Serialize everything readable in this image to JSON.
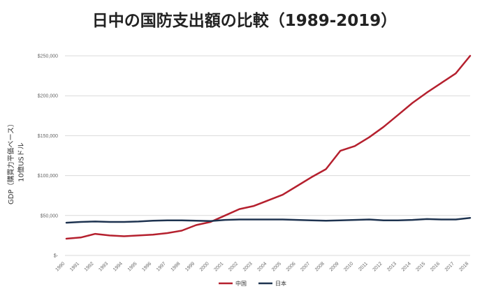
{
  "chart_data": {
    "type": "line",
    "title": "日中の国防支出額の比較（1989-2019）",
    "ylabel_line1": "GDP（購買力平価ベース）",
    "ylabel_line2": "10億USドル",
    "ylim": [
      0,
      250000
    ],
    "y_ticks": [
      "$-",
      "$50,000",
      "$100,000",
      "$150,000",
      "$200,000",
      "$250,000"
    ],
    "y_tick_values": [
      0,
      50000,
      100000,
      150000,
      200000,
      250000
    ],
    "x": [
      "1990",
      "1991",
      "1992",
      "1993",
      "1994",
      "1995",
      "1996",
      "1997",
      "1998",
      "1999",
      "2000",
      "2001",
      "2002",
      "2003",
      "2004",
      "2005",
      "2006",
      "2007",
      "2008",
      "2009",
      "2010",
      "2011",
      "2012",
      "2013",
      "2014",
      "2015",
      "2016",
      "2017",
      "2018"
    ],
    "grid": "horizontal",
    "legend_position": "bottom",
    "series": [
      {
        "name": "中国",
        "color": "#b5202e",
        "values": [
          21000,
          22500,
          27000,
          25000,
          24000,
          25000,
          26000,
          28000,
          31000,
          38000,
          42000,
          50000,
          58000,
          62000,
          69000,
          76000,
          87000,
          98000,
          108000,
          131000,
          137000,
          148000,
          161000,
          176000,
          191000,
          204000,
          216000,
          228000,
          250000
        ]
      },
      {
        "name": "日本",
        "color": "#1e3350",
        "values": [
          41000,
          42000,
          42500,
          42000,
          42000,
          42500,
          43500,
          44000,
          44000,
          43500,
          43000,
          44500,
          45000,
          45000,
          45000,
          45000,
          44500,
          44000,
          43500,
          44000,
          44500,
          45000,
          44000,
          44000,
          44500,
          45500,
          45000,
          45000,
          47000
        ]
      }
    ]
  }
}
